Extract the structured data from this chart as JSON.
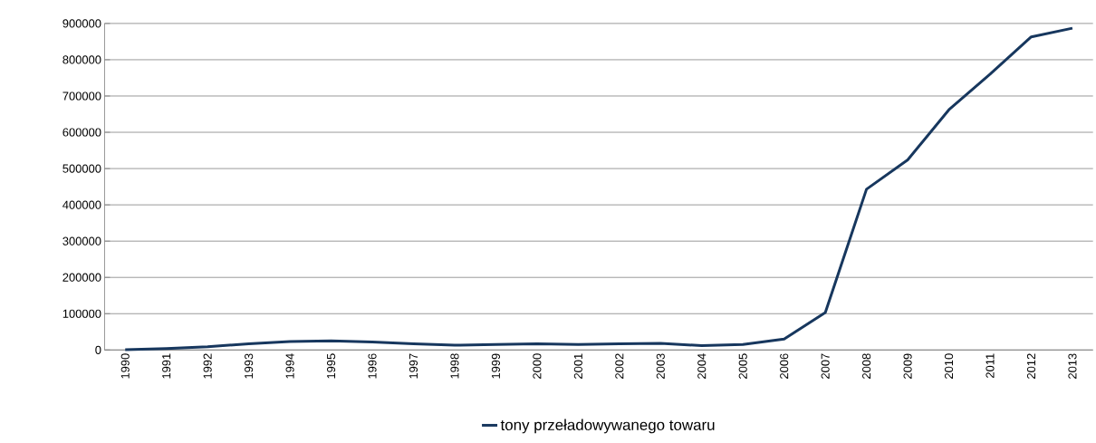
{
  "chart_data": {
    "type": "line",
    "categories": [
      "1990",
      "1991",
      "1992",
      "1993",
      "1994",
      "1995",
      "1996",
      "1997",
      "1998",
      "1999",
      "2000",
      "2001",
      "2002",
      "2003",
      "2004",
      "2005",
      "2006",
      "2007",
      "2008",
      "2009",
      "2010",
      "2011",
      "2012",
      "2013"
    ],
    "series": [
      {
        "name": "tony przeładowywanego towaru",
        "color": "#17375e",
        "values": [
          1000,
          4000,
          9000,
          17000,
          23000,
          25000,
          22000,
          17000,
          13000,
          15000,
          17000,
          15000,
          17000,
          18000,
          12000,
          15000,
          30000,
          103000,
          443000,
          524000,
          662000,
          760000,
          863000,
          887000
        ]
      }
    ],
    "ylim": [
      0,
      900000
    ],
    "yticks": [
      0,
      100000,
      200000,
      300000,
      400000,
      500000,
      600000,
      700000,
      800000,
      900000
    ],
    "grid": "y",
    "legend": "bottom",
    "marker": "none",
    "line_style": "solid"
  }
}
